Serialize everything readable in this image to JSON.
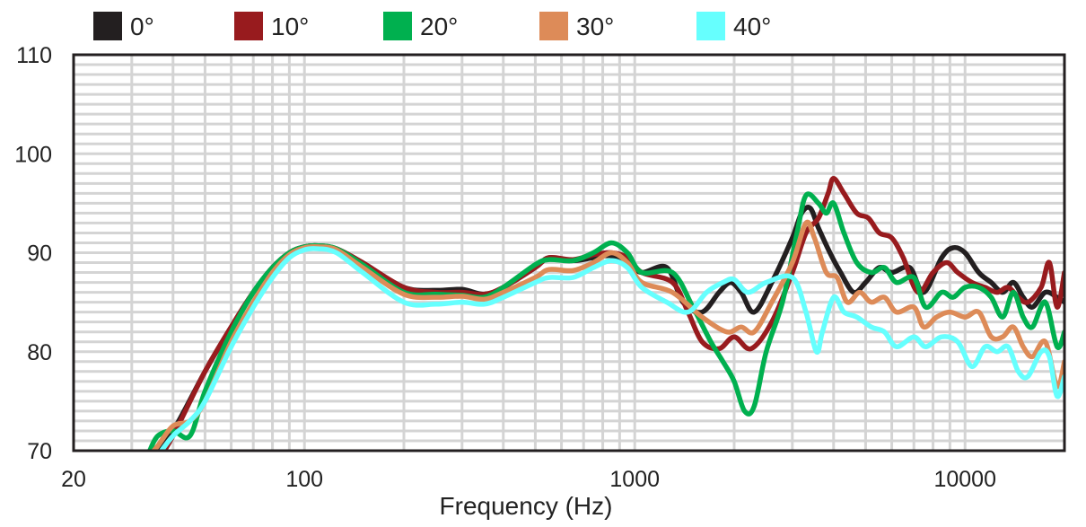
{
  "chart_data": {
    "type": "line",
    "title": "",
    "xlabel": "Frequency (Hz)",
    "ylabel": "",
    "xscale": "log",
    "xlim": [
      20,
      20000
    ],
    "ylim": [
      70,
      110
    ],
    "xticks": [
      {
        "value": 20,
        "label": "20"
      },
      {
        "value": 100,
        "label": "100"
      },
      {
        "value": 1000,
        "label": "1000"
      },
      {
        "value": 10000,
        "label": "10000"
      }
    ],
    "yticks": [
      {
        "value": 70,
        "label": "70"
      },
      {
        "value": 80,
        "label": "80"
      },
      {
        "value": 90,
        "label": "90"
      },
      {
        "value": 100,
        "label": "100"
      },
      {
        "value": 110,
        "label": "110"
      }
    ],
    "grid": true,
    "legend_position": "top",
    "series": [
      {
        "name": "0°",
        "color": "#231f20",
        "points": [
          [
            34,
            69
          ],
          [
            40,
            72
          ],
          [
            50,
            78
          ],
          [
            60,
            82.5
          ],
          [
            70,
            86
          ],
          [
            80,
            88.5
          ],
          [
            90,
            90
          ],
          [
            100,
            90.6
          ],
          [
            110,
            90.7
          ],
          [
            125,
            90.4
          ],
          [
            150,
            89
          ],
          [
            200,
            86.5
          ],
          [
            250,
            86.2
          ],
          [
            300,
            86.3
          ],
          [
            350,
            85.8
          ],
          [
            400,
            86.5
          ],
          [
            500,
            88.5
          ],
          [
            550,
            89.5
          ],
          [
            650,
            89.2
          ],
          [
            750,
            89.5
          ],
          [
            850,
            89.7
          ],
          [
            950,
            89
          ],
          [
            1050,
            88
          ],
          [
            1250,
            88.5
          ],
          [
            1400,
            85
          ],
          [
            1600,
            84
          ],
          [
            1800,
            86
          ],
          [
            1950,
            87
          ],
          [
            2100,
            86
          ],
          [
            2300,
            84
          ],
          [
            2600,
            87
          ],
          [
            3000,
            91.5
          ],
          [
            3200,
            94
          ],
          [
            3400,
            94.5
          ],
          [
            3600,
            92.5
          ],
          [
            3900,
            90
          ],
          [
            4200,
            88
          ],
          [
            4600,
            86
          ],
          [
            5000,
            87
          ],
          [
            5500,
            88.5
          ],
          [
            6000,
            88
          ],
          [
            6800,
            88.5
          ],
          [
            7500,
            86
          ],
          [
            8500,
            89.5
          ],
          [
            9200,
            90.5
          ],
          [
            10000,
            90
          ],
          [
            11000,
            88
          ],
          [
            12000,
            87
          ],
          [
            13000,
            86
          ],
          [
            14000,
            87
          ],
          [
            15000,
            85.5
          ],
          [
            16000,
            84.5
          ],
          [
            17500,
            86
          ],
          [
            19000,
            85.5
          ],
          [
            20000,
            85
          ]
        ]
      },
      {
        "name": "10°",
        "color": "#981b1e",
        "points": [
          [
            36,
            69
          ],
          [
            40,
            71.5
          ],
          [
            50,
            78
          ],
          [
            60,
            82.5
          ],
          [
            70,
            86
          ],
          [
            80,
            88.5
          ],
          [
            90,
            90
          ],
          [
            100,
            90.6
          ],
          [
            110,
            90.7
          ],
          [
            125,
            90.4
          ],
          [
            150,
            89
          ],
          [
            200,
            86.5
          ],
          [
            250,
            86
          ],
          [
            300,
            86
          ],
          [
            350,
            85.8
          ],
          [
            400,
            86.5
          ],
          [
            500,
            88.5
          ],
          [
            550,
            89.5
          ],
          [
            650,
            89.3
          ],
          [
            750,
            89.8
          ],
          [
            850,
            90
          ],
          [
            950,
            89.5
          ],
          [
            1050,
            88
          ],
          [
            1300,
            87
          ],
          [
            1450,
            84
          ],
          [
            1600,
            81
          ],
          [
            1800,
            80.3
          ],
          [
            2000,
            81.5
          ],
          [
            2250,
            80.3
          ],
          [
            2600,
            83
          ],
          [
            3000,
            88
          ],
          [
            3300,
            92
          ],
          [
            3600,
            93.5
          ],
          [
            3850,
            96
          ],
          [
            4000,
            97.5
          ],
          [
            4300,
            96
          ],
          [
            4700,
            94
          ],
          [
            5100,
            93.5
          ],
          [
            5500,
            92
          ],
          [
            6000,
            91.5
          ],
          [
            6500,
            89.5
          ],
          [
            7200,
            86
          ],
          [
            8000,
            88
          ],
          [
            8800,
            89
          ],
          [
            9500,
            88
          ],
          [
            10500,
            87
          ],
          [
            11500,
            86.5
          ],
          [
            12500,
            86
          ],
          [
            13500,
            86.5
          ],
          [
            14500,
            85.5
          ],
          [
            15500,
            85
          ],
          [
            17000,
            86.5
          ],
          [
            18000,
            89
          ],
          [
            19000,
            84.5
          ],
          [
            20000,
            88
          ]
        ]
      },
      {
        "name": "20°",
        "color": "#00b04f",
        "points": [
          [
            34,
            70
          ],
          [
            36,
            71.5
          ],
          [
            40,
            72
          ],
          [
            45,
            71.5
          ],
          [
            50,
            76
          ],
          [
            60,
            82
          ],
          [
            70,
            86
          ],
          [
            80,
            88.5
          ],
          [
            90,
            90
          ],
          [
            100,
            90.6
          ],
          [
            110,
            90.7
          ],
          [
            125,
            90.4
          ],
          [
            150,
            88.8
          ],
          [
            200,
            86
          ],
          [
            250,
            85.8
          ],
          [
            300,
            85.7
          ],
          [
            350,
            85.5
          ],
          [
            400,
            86.5
          ],
          [
            500,
            88.8
          ],
          [
            550,
            89.3
          ],
          [
            650,
            89.2
          ],
          [
            750,
            90
          ],
          [
            850,
            91
          ],
          [
            950,
            90
          ],
          [
            1050,
            88
          ],
          [
            1300,
            88
          ],
          [
            1500,
            84.5
          ],
          [
            1700,
            81
          ],
          [
            1850,
            79
          ],
          [
            2000,
            77
          ],
          [
            2150,
            74
          ],
          [
            2300,
            74.5
          ],
          [
            2500,
            80
          ],
          [
            2800,
            85
          ],
          [
            3100,
            92
          ],
          [
            3300,
            95.8
          ],
          [
            3600,
            95
          ],
          [
            3800,
            94
          ],
          [
            4000,
            95
          ],
          [
            4300,
            92
          ],
          [
            4700,
            89
          ],
          [
            5200,
            88
          ],
          [
            5700,
            88.5
          ],
          [
            6200,
            87
          ],
          [
            7000,
            87.5
          ],
          [
            7600,
            84.5
          ],
          [
            8500,
            86
          ],
          [
            9200,
            85.5
          ],
          [
            10000,
            86.5
          ],
          [
            11000,
            86.5
          ],
          [
            12000,
            85.5
          ],
          [
            13000,
            83.5
          ],
          [
            14000,
            86
          ],
          [
            15000,
            83.5
          ],
          [
            16000,
            82.5
          ],
          [
            17500,
            85
          ],
          [
            19000,
            80.5
          ],
          [
            20000,
            82
          ]
        ]
      },
      {
        "name": "30°",
        "color": "#dd8b58",
        "points": [
          [
            34,
            69.5
          ],
          [
            36,
            70.5
          ],
          [
            40,
            72.5
          ],
          [
            45,
            73
          ],
          [
            50,
            75
          ],
          [
            60,
            81
          ],
          [
            70,
            85
          ],
          [
            80,
            88
          ],
          [
            90,
            89.8
          ],
          [
            100,
            90.5
          ],
          [
            110,
            90.6
          ],
          [
            125,
            90.3
          ],
          [
            150,
            88.5
          ],
          [
            200,
            85.8
          ],
          [
            250,
            85.5
          ],
          [
            300,
            85.6
          ],
          [
            350,
            85.3
          ],
          [
            400,
            86
          ],
          [
            500,
            87.5
          ],
          [
            550,
            88.3
          ],
          [
            650,
            88.2
          ],
          [
            750,
            89
          ],
          [
            850,
            90
          ],
          [
            950,
            89
          ],
          [
            1050,
            87
          ],
          [
            1300,
            86
          ],
          [
            1600,
            83.5
          ],
          [
            1900,
            82
          ],
          [
            2100,
            82.5
          ],
          [
            2300,
            82
          ],
          [
            2600,
            85
          ],
          [
            3000,
            89
          ],
          [
            3300,
            93
          ],
          [
            3500,
            91.5
          ],
          [
            3800,
            88
          ],
          [
            4100,
            87.5
          ],
          [
            4400,
            85
          ],
          [
            4800,
            86
          ],
          [
            5200,
            85
          ],
          [
            5700,
            85.5
          ],
          [
            6200,
            84
          ],
          [
            7000,
            84.5
          ],
          [
            7500,
            82.5
          ],
          [
            8200,
            83.5
          ],
          [
            9000,
            84
          ],
          [
            10000,
            83.5
          ],
          [
            11000,
            84
          ],
          [
            12000,
            81.5
          ],
          [
            13000,
            81.5
          ],
          [
            14000,
            82.5
          ],
          [
            15000,
            80.5
          ],
          [
            16000,
            79.5
          ],
          [
            17500,
            81
          ],
          [
            19000,
            76.5
          ],
          [
            20000,
            79
          ]
        ]
      },
      {
        "name": "40°",
        "color": "#66fffe",
        "points": [
          [
            36,
            69.5
          ],
          [
            40,
            71.5
          ],
          [
            45,
            73
          ],
          [
            50,
            75
          ],
          [
            60,
            80.5
          ],
          [
            70,
            84.5
          ],
          [
            80,
            87.5
          ],
          [
            90,
            89.5
          ],
          [
            100,
            90.3
          ],
          [
            110,
            90.4
          ],
          [
            125,
            90
          ],
          [
            150,
            88
          ],
          [
            200,
            85
          ],
          [
            250,
            84.8
          ],
          [
            300,
            85
          ],
          [
            350,
            84.8
          ],
          [
            400,
            85.5
          ],
          [
            500,
            87
          ],
          [
            550,
            87.5
          ],
          [
            650,
            87.5
          ],
          [
            750,
            88.5
          ],
          [
            850,
            89.2
          ],
          [
            950,
            88.5
          ],
          [
            1050,
            86.5
          ],
          [
            1250,
            85
          ],
          [
            1450,
            84
          ],
          [
            1650,
            86
          ],
          [
            1850,
            87
          ],
          [
            2000,
            87.3
          ],
          [
            2200,
            86
          ],
          [
            2500,
            87
          ],
          [
            3000,
            87.5
          ],
          [
            3300,
            84
          ],
          [
            3550,
            80
          ],
          [
            3700,
            82
          ],
          [
            4000,
            85.5
          ],
          [
            4300,
            84
          ],
          [
            4700,
            83.5
          ],
          [
            5200,
            82.5
          ],
          [
            5700,
            82
          ],
          [
            6200,
            80.5
          ],
          [
            7000,
            81.5
          ],
          [
            7600,
            80.5
          ],
          [
            8500,
            81.5
          ],
          [
            9500,
            81
          ],
          [
            10500,
            78.5
          ],
          [
            11500,
            80.5
          ],
          [
            12500,
            80
          ],
          [
            13500,
            80.5
          ],
          [
            14500,
            78
          ],
          [
            15500,
            77.5
          ],
          [
            17000,
            80
          ],
          [
            18000,
            79.5
          ],
          [
            19000,
            75.5
          ],
          [
            20000,
            77.5
          ]
        ]
      }
    ]
  }
}
